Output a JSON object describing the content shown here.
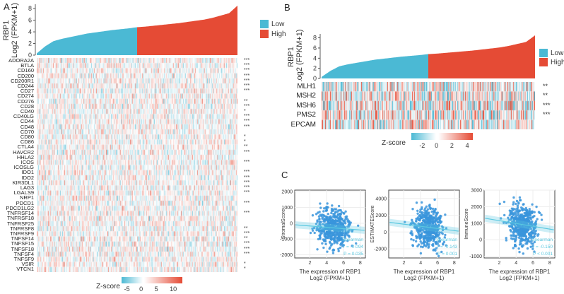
{
  "panels": {
    "a": "A",
    "b": "B",
    "c": "C"
  },
  "colors": {
    "low": "#4bb9d4",
    "high": "#e54b35",
    "neg": "#4bb9d4",
    "pos": "#e54b35",
    "scatter": "#3a95dc",
    "fit": "#5bc8e0"
  },
  "chart_data": [
    {
      "type": "bar",
      "panel": "A",
      "ylabel_line1": "RBP1",
      "ylabel_line2": "Log2 (FPKM+1)",
      "ylim": [
        0,
        8.5
      ],
      "yticks": [
        "0",
        "2",
        "4",
        "6",
        "8"
      ],
      "sorted_expression_quantiles": [
        0.3,
        1.5,
        2.4,
        2.8,
        3.1,
        3.4,
        3.7,
        3.9,
        4.1,
        4.3,
        4.45,
        4.6,
        4.8,
        4.9,
        5.05,
        5.2,
        5.35,
        5.5,
        5.7,
        5.9,
        6.1,
        6.4,
        6.8,
        7.2,
        8.5
      ],
      "groups": [
        "Low",
        "High"
      ],
      "legend": [
        {
          "name": "Low"
        },
        {
          "name": "High"
        }
      ],
      "legend_position": "right"
    },
    {
      "type": "heatmap",
      "panel": "A",
      "rows": [
        "ADORA2A",
        "BTLA",
        "CD160",
        "CD200",
        "CD200R1",
        "CD244",
        "CD27",
        "CD274",
        "CD276",
        "CD28",
        "CD40",
        "CD40LG",
        "CD44",
        "CD48",
        "CD70",
        "CD80",
        "CD86",
        "CTLA4",
        "HAVCR2",
        "HHLA2",
        "ICOS",
        "ICOSLG",
        "IDO1",
        "IDO2",
        "KIR3DL1",
        "LAG3",
        "LGALS9",
        "NRP1",
        "PDCD1",
        "PDCD1LG2",
        "TNFRSF14",
        "TNFRSF18",
        "TNFRSF25",
        "TNFRSF8",
        "TNFRSF9",
        "TNFSF14",
        "TNFSF15",
        "TNFSF18",
        "TNFSF4",
        "TNFSF9",
        "VSIR",
        "VTCN1"
      ],
      "significance": [
        "***",
        "***",
        "***",
        "***",
        "***",
        "***",
        "***",
        "",
        "**",
        "***",
        "*",
        "***",
        "***",
        "***",
        "",
        "*",
        "*",
        "**",
        "***",
        "",
        "***",
        "",
        "***",
        "***",
        "***",
        "***",
        "***",
        "",
        "***",
        "",
        "***",
        "",
        "",
        "**",
        "***",
        "**",
        "***",
        "***",
        "***",
        "",
        "*",
        "*"
      ],
      "colorbar": {
        "title": "Z-score",
        "ticks": [
          "-5",
          "0",
          "5",
          "10"
        ],
        "range": [
          -7,
          13
        ]
      }
    },
    {
      "type": "bar",
      "panel": "B",
      "ylabel_line1": "RBP1",
      "ylabel_line2": "Log2 (FPKM+1)",
      "ylim": [
        0,
        8.5
      ],
      "yticks": [
        "0",
        "2",
        "4",
        "6",
        "8"
      ],
      "legend": [
        {
          "name": "Low"
        },
        {
          "name": "High"
        }
      ],
      "legend_position": "right"
    },
    {
      "type": "heatmap",
      "panel": "B",
      "rows": [
        "MLH1",
        "MSH2",
        "MSH6",
        "PMS2",
        "EPCAM"
      ],
      "significance": [
        "**",
        "**",
        "***",
        "***",
        ""
      ],
      "colorbar": {
        "title": "Z-score",
        "ticks": [
          "-2",
          "0",
          "2",
          "4"
        ],
        "range": [
          -3.5,
          4.5
        ]
      }
    },
    {
      "type": "scatter",
      "panel": "C",
      "ylabel": "StromalScore",
      "xlabel_line1": "The expression of RBP1",
      "xlabel_line2": "Log2 (FPKM+1)",
      "xlim": [
        0.2,
        8.6
      ],
      "ylim": [
        -2200,
        2100
      ],
      "xticks": [
        "2",
        "4",
        "6",
        "8"
      ],
      "yticks": [
        "-2000",
        "-1000",
        "0",
        "1000",
        "2000"
      ],
      "method": "Spearman",
      "r": "r = -0.094",
      "p": "P = 0.035",
      "fit": [
        [
          0.3,
          -100
        ],
        [
          8.5,
          -450
        ]
      ]
    },
    {
      "type": "scatter",
      "panel": "C",
      "ylabel": "ESTIMATEScore",
      "xlabel_line1": "The expression of RBP1",
      "xlabel_line2": "Log2 (FPKM+1)",
      "xlim": [
        0.2,
        8.6
      ],
      "ylim": [
        -3100,
        5000
      ],
      "xticks": [
        "2",
        "4",
        "6",
        "8"
      ],
      "yticks": [
        "-2000",
        "0",
        "2000",
        "4000"
      ],
      "method": "Spearman",
      "r": "r = -0.143",
      "p": "P = 0.001",
      "fit": [
        [
          0.3,
          1150
        ],
        [
          8.5,
          100
        ]
      ]
    },
    {
      "type": "scatter",
      "panel": "C",
      "ylabel": "ImmuneScore",
      "xlabel_line1": "The expression of RBP1",
      "xlabel_line2": "Log2 (FPKM+1)",
      "xlim": [
        0.2,
        8.6
      ],
      "ylim": [
        -1100,
        3000
      ],
      "xticks": [
        "2",
        "4",
        "6",
        "8"
      ],
      "yticks": [
        "-1000",
        "0",
        "1000",
        "2000",
        "3000"
      ],
      "method": "Spearman",
      "r": "r = -0.150",
      "p": "P < 0.001",
      "fit": [
        [
          0.3,
          1300
        ],
        [
          8.5,
          600
        ]
      ]
    }
  ]
}
